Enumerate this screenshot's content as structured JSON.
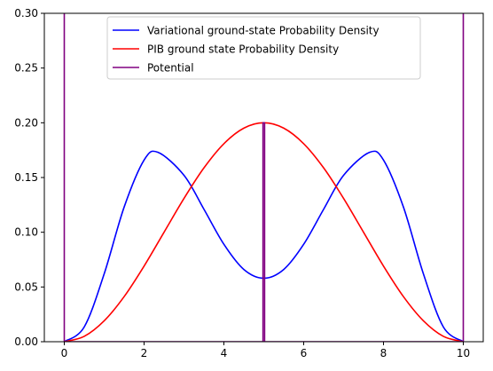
{
  "chart_data": {
    "type": "line",
    "title": "",
    "xlabel": "",
    "ylabel": "",
    "xlim": [
      -0.5,
      10.5
    ],
    "ylim": [
      0,
      0.3
    ],
    "x_ticks": [
      0,
      2,
      4,
      6,
      8,
      10
    ],
    "x_tick_labels": [
      "0",
      "2",
      "4",
      "6",
      "8",
      "10"
    ],
    "y_ticks": [
      0.0,
      0.05,
      0.1,
      0.15,
      0.2,
      0.25,
      0.3
    ],
    "y_tick_labels": [
      "0.00",
      "0.05",
      "0.10",
      "0.15",
      "0.20",
      "0.25",
      "0.30"
    ],
    "grid": false,
    "legend_position": "top-center",
    "series": [
      {
        "name": "Variational ground-state Probability Density",
        "color": "#0000ff",
        "x": [
          0,
          0.5,
          1,
          1.5,
          2,
          2.35,
          3,
          3.5,
          4,
          4.5,
          5,
          5.5,
          6,
          6.5,
          7,
          7.65,
          8,
          8.5,
          9,
          9.5,
          10
        ],
        "y": [
          0,
          0.0135,
          0.062,
          0.123,
          0.166,
          0.173,
          0.152,
          0.121,
          0.089,
          0.066,
          0.058,
          0.066,
          0.089,
          0.121,
          0.152,
          0.173,
          0.166,
          0.123,
          0.062,
          0.0135,
          0
        ]
      },
      {
        "name": "PIB ground state Probability Density",
        "color": "#ff0000",
        "x": [
          0,
          0.5,
          1,
          1.5,
          2,
          2.5,
          3,
          3.5,
          4,
          4.5,
          5,
          5.5,
          6,
          6.5,
          7,
          7.5,
          8,
          8.5,
          9,
          9.5,
          10
        ],
        "y": [
          0,
          0.0049,
          0.0191,
          0.0412,
          0.0691,
          0.1,
          0.1309,
          0.1588,
          0.1809,
          0.1951,
          0.2,
          0.1951,
          0.1809,
          0.1588,
          0.1309,
          0.1,
          0.0691,
          0.0412,
          0.0191,
          0.0049,
          0
        ]
      },
      {
        "name": "Potential",
        "color": "#800080",
        "x": [
          0,
          0,
          0,
          4.98,
          4.98,
          5.02,
          5.02,
          10,
          10,
          10
        ],
        "y": [
          0.3,
          0.3,
          0,
          0,
          0.2,
          0.2,
          0,
          0,
          0.3,
          0.3
        ]
      }
    ]
  }
}
